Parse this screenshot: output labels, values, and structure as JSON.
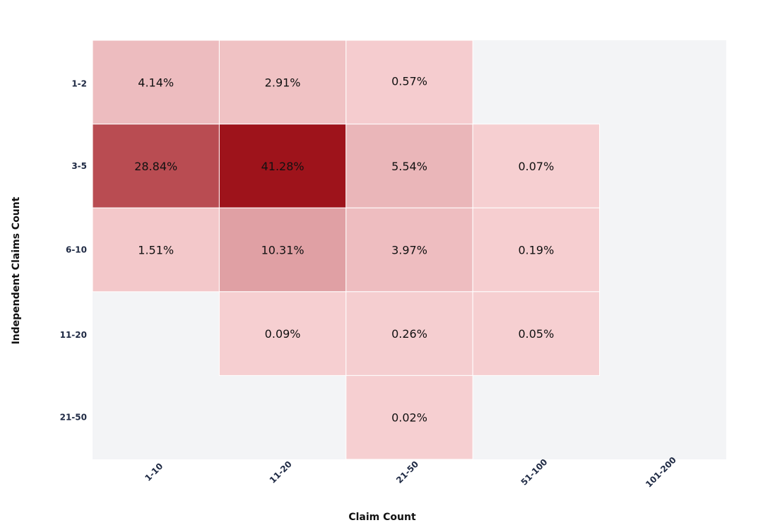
{
  "chart_data": {
    "type": "heatmap",
    "title": "",
    "xlabel": "Claim Count",
    "ylabel": "Independent Claims Count",
    "x_categories": [
      "1-10",
      "11-20",
      "21-50",
      "51-100",
      "101-200"
    ],
    "y_categories": [
      "1-2",
      "3-5",
      "6-10",
      "11-20",
      "21-50"
    ],
    "values": [
      [
        4.14,
        2.91,
        0.57,
        null,
        null
      ],
      [
        28.84,
        41.28,
        5.54,
        0.07,
        null
      ],
      [
        1.51,
        10.31,
        3.97,
        0.19,
        null
      ],
      [
        null,
        0.09,
        0.26,
        0.05,
        null
      ],
      [
        null,
        null,
        0.02,
        null,
        null
      ]
    ],
    "labels": [
      [
        "4.14%",
        "2.91%",
        "0.57%",
        "",
        ""
      ],
      [
        "28.84%",
        "41.28%",
        "5.54%",
        "0.07%",
        ""
      ],
      [
        "1.51%",
        "10.31%",
        "3.97%",
        "0.19%",
        ""
      ],
      [
        "",
        "0.09%",
        "0.26%",
        "0.05%",
        ""
      ],
      [
        "",
        "",
        "0.02%",
        "",
        ""
      ]
    ],
    "colorscale": [
      "#f6cfd1",
      "#9e131b"
    ],
    "empty_color": "#f3f4f6",
    "grid": false,
    "legend": "none"
  }
}
